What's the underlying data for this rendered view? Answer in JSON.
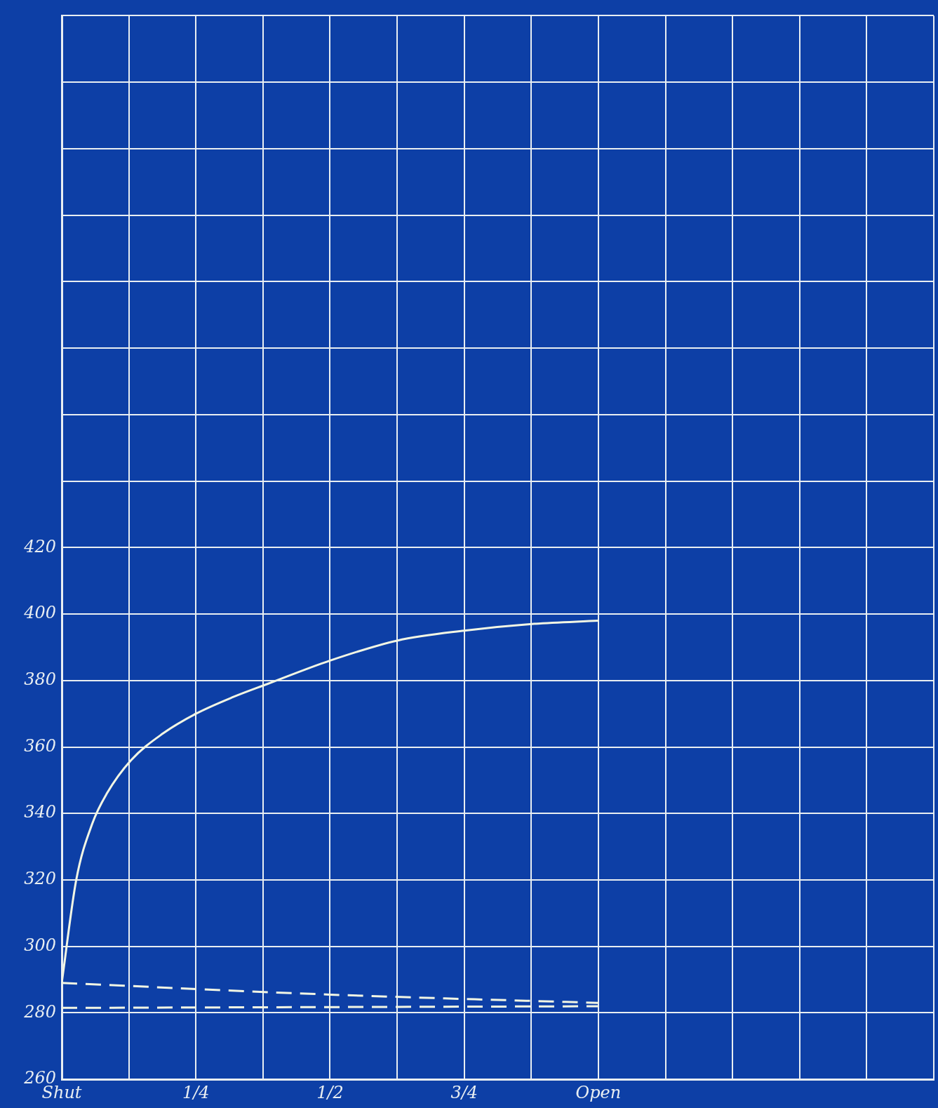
{
  "chart_data": {
    "type": "line",
    "xlim": [
      0,
      1.625
    ],
    "xticks": [
      {
        "value": 0,
        "label": "Shut"
      },
      {
        "value": 0.125,
        "label": null
      },
      {
        "value": 0.25,
        "label": "1/4"
      },
      {
        "value": 0.375,
        "label": null
      },
      {
        "value": 0.5,
        "label": "1/2"
      },
      {
        "value": 0.625,
        "label": null
      },
      {
        "value": 0.75,
        "label": "3/4"
      },
      {
        "value": 0.875,
        "label": null
      },
      {
        "value": 1,
        "label": "Open"
      },
      {
        "value": 1.125,
        "label": null
      },
      {
        "value": 1.25,
        "label": null
      },
      {
        "value": 1.375,
        "label": null
      },
      {
        "value": 1.5,
        "label": null
      },
      {
        "value": 1.625,
        "label": null
      }
    ],
    "ylim": [
      260,
      580
    ],
    "yticks": [
      260,
      280,
      300,
      320,
      340,
      360,
      380,
      400,
      420,
      {
        "value": 440,
        "label": null
      },
      {
        "value": 460,
        "label": null
      },
      {
        "value": 480,
        "label": null
      },
      {
        "value": 500,
        "label": null
      },
      {
        "value": 520,
        "label": null
      },
      {
        "value": 540,
        "label": null
      },
      {
        "value": 560,
        "label": null
      },
      {
        "value": 580,
        "label": null
      }
    ],
    "grid": true,
    "legend": false,
    "marker": "none",
    "series": [
      {
        "color": "#f2f6e4",
        "line_style": "solid",
        "x": [
          0,
          0.027,
          0.057,
          0.084,
          0.129,
          0.188,
          0.25,
          0.319,
          0.384,
          0.5,
          0.625,
          0.75,
          0.876,
          1
        ],
        "values": [
          289,
          320,
          337,
          346,
          356,
          364,
          370,
          375,
          379,
          386,
          392,
          395,
          397,
          398
        ]
      },
      {
        "color": "#f2f6e4",
        "line_style": "dashed",
        "x": [
          0,
          0.5,
          1
        ],
        "values": [
          289,
          285.5,
          283
        ]
      },
      {
        "color": "#f2f6e4",
        "line_style": "dashed",
        "x": [
          0,
          1
        ],
        "values": [
          281.5,
          282
        ]
      }
    ]
  }
}
